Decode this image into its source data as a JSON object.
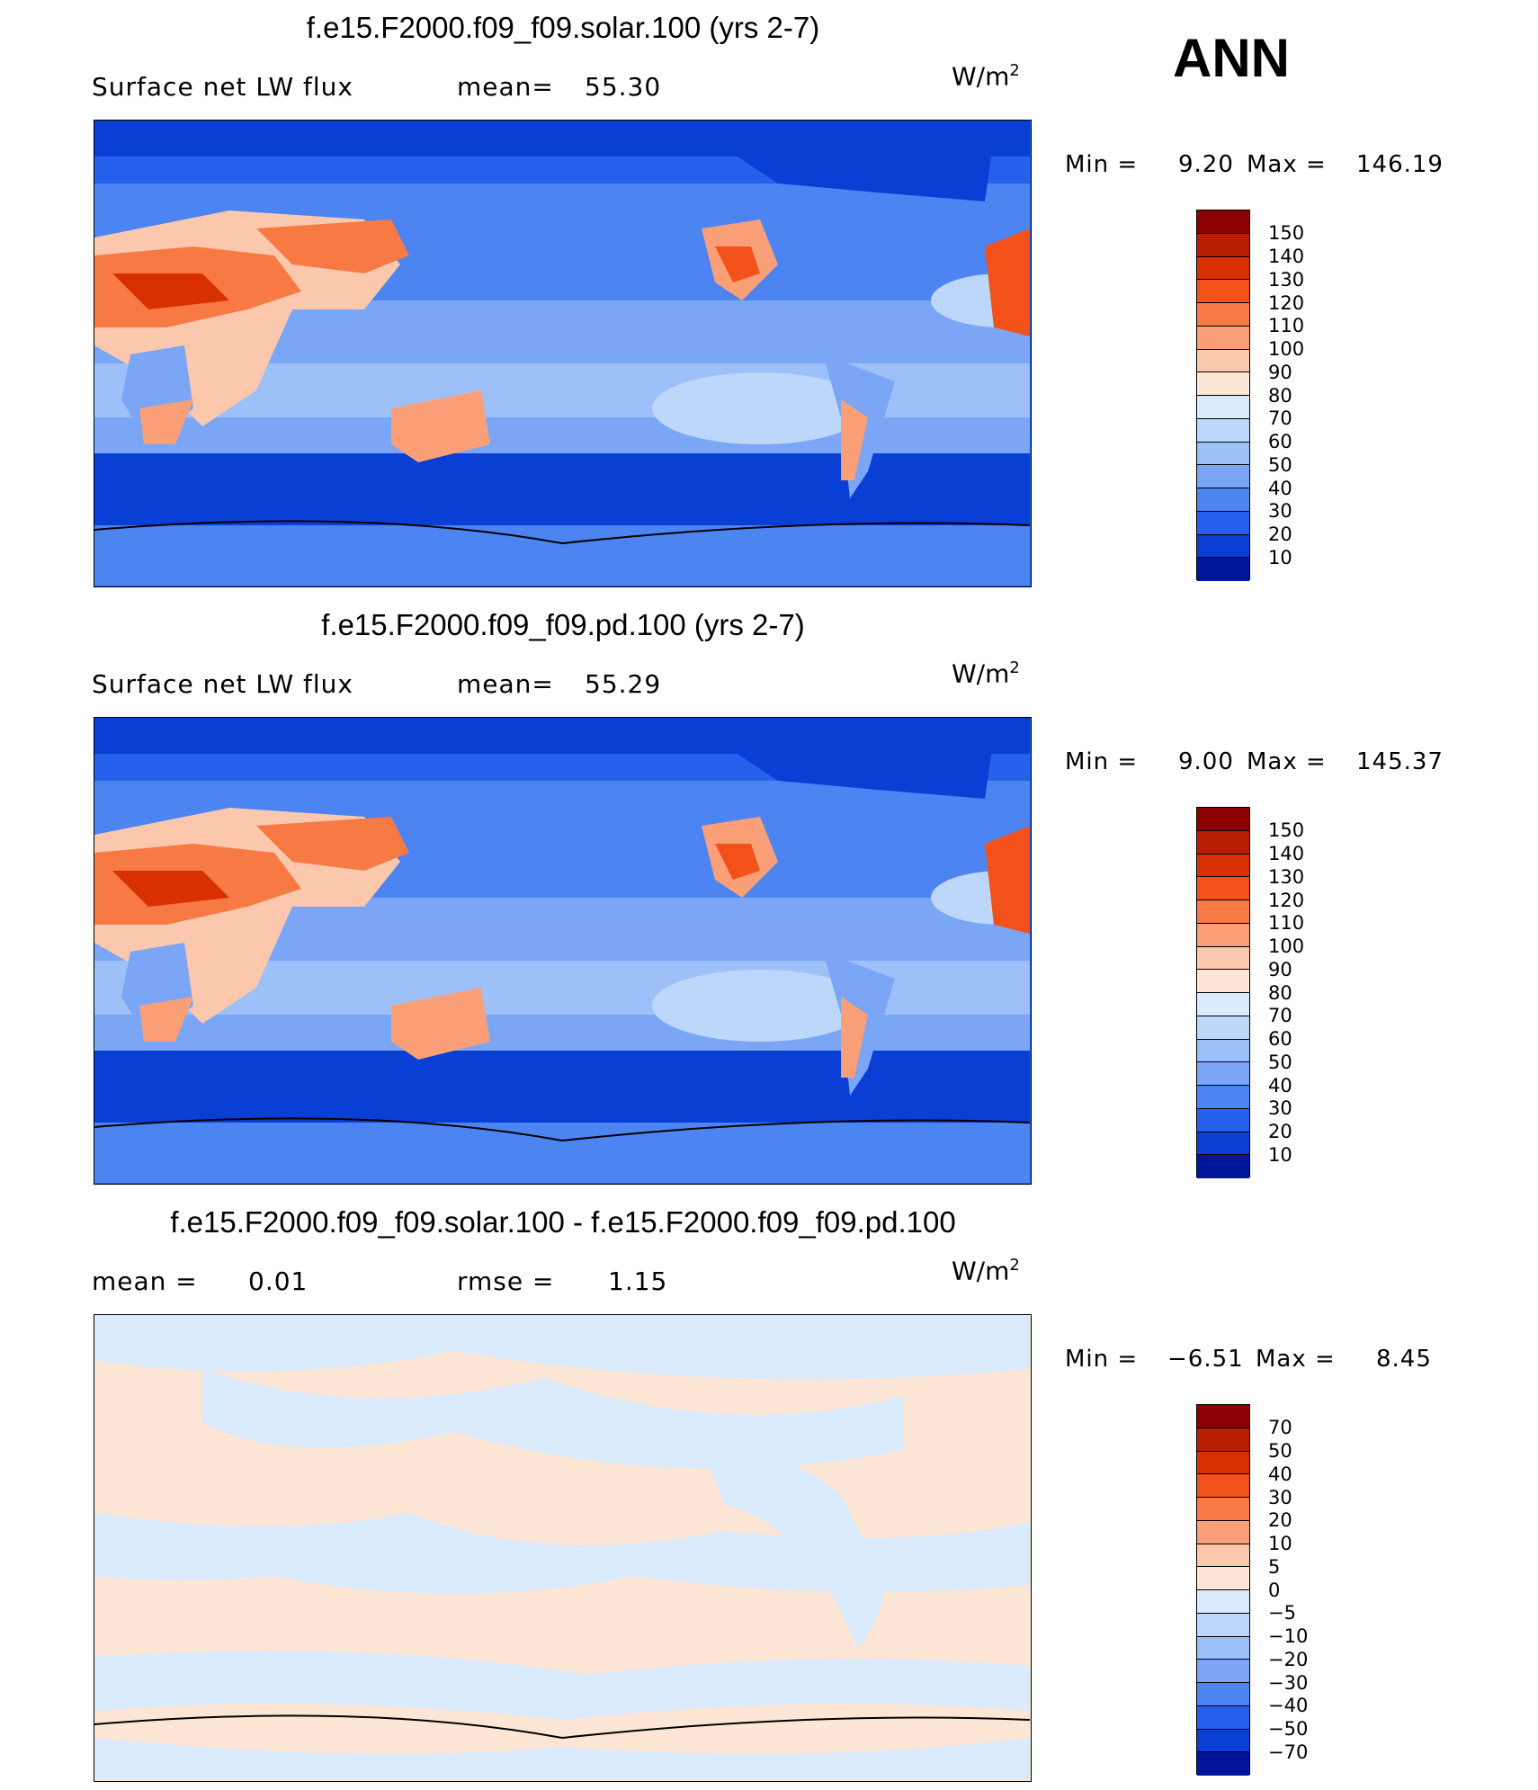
{
  "season": "ANN",
  "units_base": "W/m",
  "units_exp": "2",
  "panels": [
    {
      "title": "f.e15.F2000.f09_f09.solar.100 (yrs 2-7)",
      "left_label": "Surface net LW flux",
      "mid_label": "mean=",
      "mid_value": "55.30",
      "min_label": "Min =",
      "min_value": "9.20",
      "max_label": "Max =",
      "max_value": "146.19"
    },
    {
      "title": "f.e15.F2000.f09_f09.pd.100 (yrs 2-7)",
      "left_label": "Surface net LW flux",
      "mid_label": "mean=",
      "mid_value": "55.29",
      "min_label": "Min =",
      "min_value": "9.00",
      "max_label": "Max =",
      "max_value": "145.37"
    },
    {
      "title": "f.e15.F2000.f09_f09.solar.100 - f.e15.F2000.f09_f09.pd.100",
      "left_label": "mean =",
      "left_value": "0.01",
      "mid_label": "rmse =",
      "mid_value": "1.15",
      "min_label": "Min =",
      "min_value": "−6.51",
      "max_label": "Max =",
      "max_value": "8.45"
    }
  ],
  "colorbar_main": {
    "labels": [
      "150",
      "140",
      "130",
      "120",
      "110",
      "100",
      "90",
      "80",
      "70",
      "60",
      "50",
      "40",
      "30",
      "20",
      "10"
    ],
    "colors": [
      "#8b0000",
      "#b81e00",
      "#d93000",
      "#f2521a",
      "#f77a45",
      "#fa9f78",
      "#fcc8ad",
      "#fde6d6",
      "#d9ebfc",
      "#bdd7fb",
      "#9dc0f8",
      "#7aa6f5",
      "#4c84f2",
      "#2561ec",
      "#0a3fd6",
      "#00169a"
    ]
  },
  "colorbar_diff": {
    "labels": [
      "70",
      "50",
      "40",
      "30",
      "20",
      "10",
      "5",
      "0",
      "−5",
      "−10",
      "−20",
      "−30",
      "−40",
      "−50",
      "−70"
    ],
    "colors": [
      "#8b0000",
      "#b81e00",
      "#d93000",
      "#f2521a",
      "#f77a45",
      "#fa9f78",
      "#fcc8ad",
      "#fde6d6",
      "#d9ebfc",
      "#bdd7fb",
      "#9dc0f8",
      "#7aa6f5",
      "#4c84f2",
      "#2561ec",
      "#0a3fd6",
      "#00169a"
    ]
  }
}
